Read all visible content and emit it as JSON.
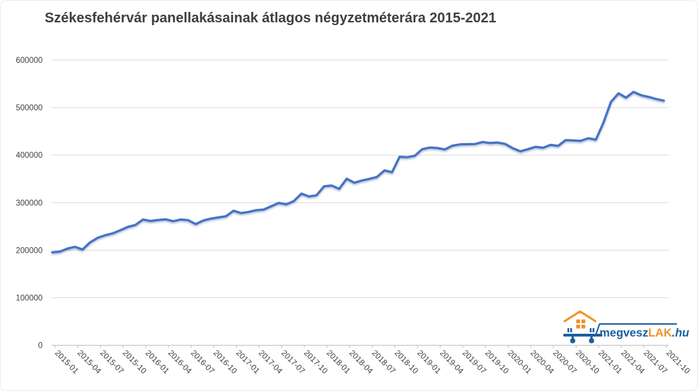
{
  "title": "Székesfehérvár panellakásainak átlagos négyzetméterára 2015-2021",
  "watermark": {
    "brand_part1": "megvesz",
    "brand_part2": "LAK",
    "brand_part3": ".hu"
  },
  "colors": {
    "line": "#4472c4",
    "line_shadow": "#3a5a94",
    "grid": "#d9d9d9",
    "axis": "#bfbfbf",
    "text": "#404040",
    "logo_blue": "#1c5f9e",
    "logo_orange": "#f0912d"
  },
  "chart_data": {
    "type": "line",
    "title": "Székesfehérvár panellakásainak átlagos négyzetméterára 2015-2021",
    "x": [
      "2015-01",
      "2015-02",
      "2015-03",
      "2015-04",
      "2015-05",
      "2015-06",
      "2015-07",
      "2015-08",
      "2015-09",
      "2015-10",
      "2015-11",
      "2015-12",
      "2016-01",
      "2016-02",
      "2016-03",
      "2016-04",
      "2016-05",
      "2016-06",
      "2016-07",
      "2016-08",
      "2016-09",
      "2016-10",
      "2016-11",
      "2016-12",
      "2017-01",
      "2017-02",
      "2017-03",
      "2017-04",
      "2017-05",
      "2017-06",
      "2017-07",
      "2017-08",
      "2017-09",
      "2017-10",
      "2017-11",
      "2017-12",
      "2018-01",
      "2018-02",
      "2018-03",
      "2018-04",
      "2018-05",
      "2018-06",
      "2018-07",
      "2018-08",
      "2018-09",
      "2018-10",
      "2018-11",
      "2018-12",
      "2019-01",
      "2019-02",
      "2019-03",
      "2019-04",
      "2019-05",
      "2019-06",
      "2019-07",
      "2019-08",
      "2019-09",
      "2019-10",
      "2019-11",
      "2019-12",
      "2020-01",
      "2020-02",
      "2020-03",
      "2020-04",
      "2020-05",
      "2020-06",
      "2020-07",
      "2020-08",
      "2020-09",
      "2020-10",
      "2020-11",
      "2020-12",
      "2021-01",
      "2021-02",
      "2021-03",
      "2021-04",
      "2021-05",
      "2021-06",
      "2021-07",
      "2021-08",
      "2021-09",
      "2021-10"
    ],
    "values": [
      195500,
      197000,
      203500,
      207000,
      201500,
      216500,
      226000,
      231500,
      235500,
      242000,
      249000,
      253000,
      264500,
      261500,
      263500,
      265000,
      261000,
      264500,
      263000,
      255000,
      262500,
      266500,
      269000,
      271500,
      283000,
      278000,
      280500,
      284000,
      285500,
      292500,
      299500,
      296500,
      303500,
      319000,
      313000,
      315500,
      334500,
      336000,
      329000,
      350500,
      342000,
      346500,
      350000,
      354000,
      368000,
      364000,
      396500,
      395500,
      398500,
      412500,
      416000,
      415000,
      412000,
      420000,
      422500,
      423000,
      423500,
      427500,
      425500,
      426500,
      423500,
      414500,
      408000,
      412500,
      417500,
      415500,
      421500,
      419500,
      431500,
      431000,
      430000,
      435500,
      432500,
      468000,
      512000,
      530000,
      521000,
      533000,
      526000,
      522500,
      518000,
      514500
    ],
    "ylim": [
      0,
      600000
    ],
    "ytick_step": 100000,
    "yticks": [
      "0",
      "100000",
      "200000",
      "300000",
      "400000",
      "500000",
      "600000"
    ],
    "xtick_every": 3,
    "x_label_rotation_deg": 45,
    "grid": true,
    "legend_position": "none"
  }
}
